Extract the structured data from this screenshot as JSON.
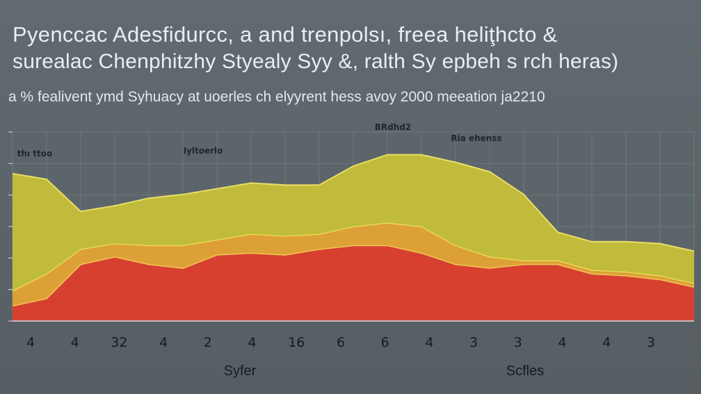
{
  "title": {
    "line1": "Pyenccac Adesfidurcc, a and trenpolsı, freea heliţhcto &",
    "line2": "surealac Chenphitzhy Styealy Syy &, ralth Sy epbeh s rch heras)",
    "subtitle": "a % fealivent ymd Syhuacy at uoerles ch elyyrent hess avoy 2000 meeation ja2210"
  },
  "chart_data": {
    "type": "area",
    "stacked": true,
    "x": [
      0,
      1,
      2,
      3,
      4,
      5,
      6,
      7,
      8,
      9,
      10,
      11,
      12,
      13,
      14,
      15,
      16,
      17,
      18,
      19,
      20
    ],
    "categories": [
      "4",
      "4",
      "32",
      "4",
      "2",
      "4",
      "16",
      "6",
      "6",
      "4",
      "3",
      "3",
      "4",
      "4",
      "3"
    ],
    "xlabel": "Syfer",
    "secondary_label": "Scfles",
    "ylim": [
      0,
      100
    ],
    "grid": true,
    "legend": "none",
    "series": [
      {
        "color": "#e23d2a",
        "values": [
          8,
          12,
          30,
          34,
          30,
          28,
          35,
          36,
          35,
          38,
          40,
          40,
          36,
          30,
          28,
          30,
          30,
          25,
          24,
          22,
          18
        ]
      },
      {
        "color": "#e8a533",
        "values": [
          8,
          13,
          8,
          7,
          10,
          12,
          8,
          10,
          10,
          8,
          10,
          12,
          14,
          10,
          6,
          2,
          2,
          2,
          2,
          2,
          2
        ]
      },
      {
        "color": "#c9c236",
        "values": [
          62,
          50,
          20,
          20,
          25,
          27,
          27,
          27,
          27,
          26,
          32,
          36,
          38,
          44,
          45,
          35,
          15,
          15,
          16,
          17,
          17
        ]
      }
    ],
    "annotations": [
      "BRdhd2",
      "Ria ehenss",
      "thı ttoo",
      "Iyltoerlo"
    ]
  },
  "colors": {
    "background": "#5f686d",
    "grid": "#6f787c",
    "line": "#f3e76a"
  }
}
